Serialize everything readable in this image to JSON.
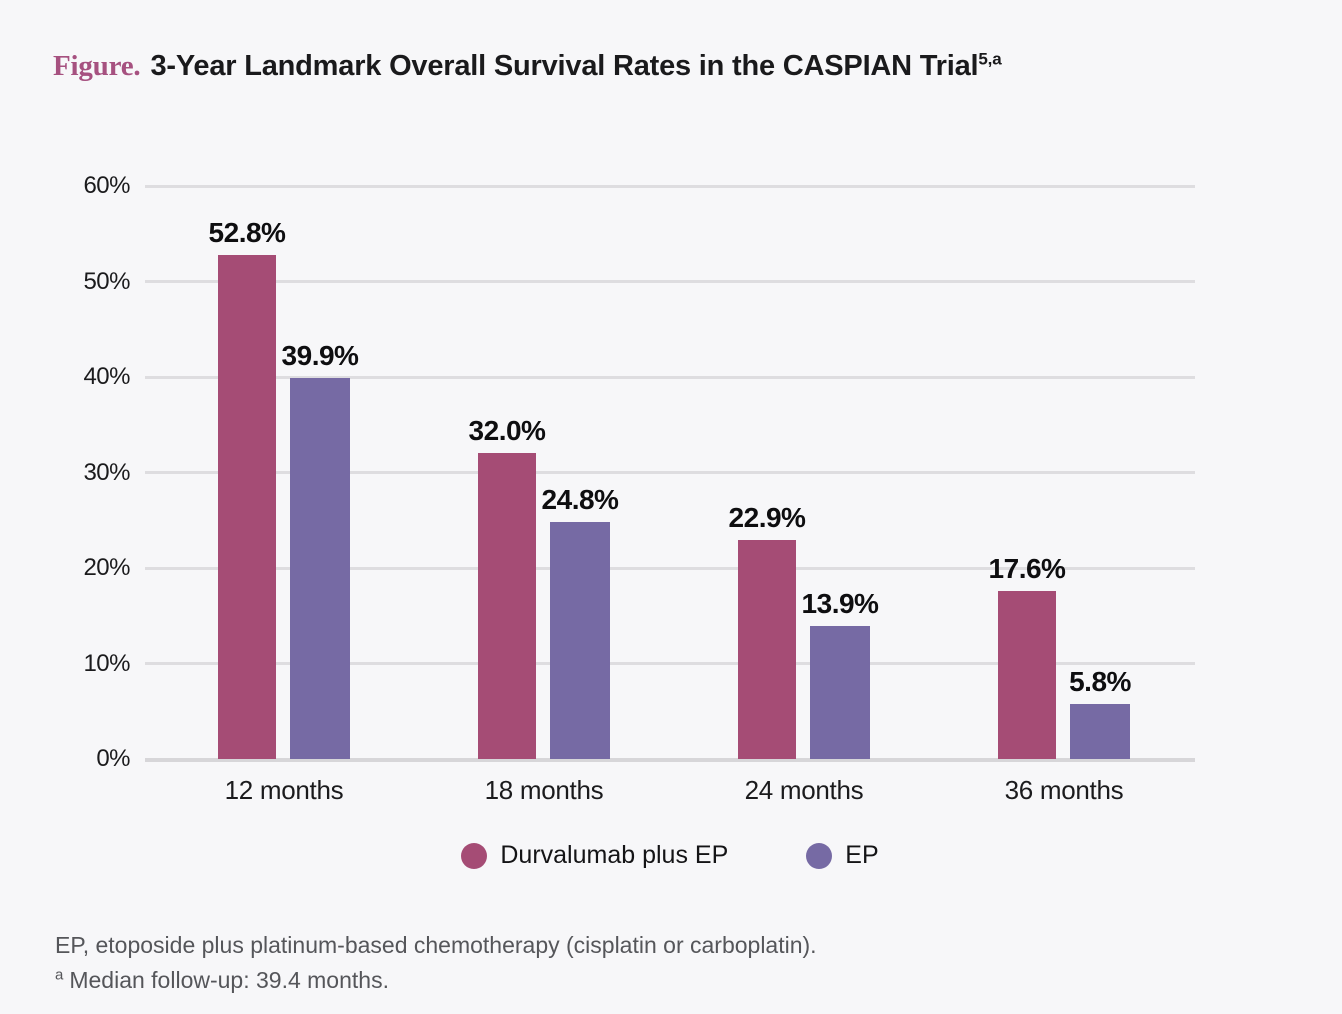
{
  "header": {
    "figure_label": "Figure.",
    "title": "3-Year Landmark Overall Survival Rates in the CASPIAN Trial",
    "superscript": "5,a"
  },
  "colors": {
    "background": "#f7f7f9",
    "title_accent": "#a65180",
    "gridline": "#dedde0",
    "axis_line": "#d7d6d9",
    "footnote_text": "#55565a",
    "durvalumab_plus_ep": "#a54c75",
    "ep": "#766aa4"
  },
  "chart_data": {
    "type": "bar",
    "title": "3-Year Landmark Overall Survival Rates in the CASPIAN Trial",
    "categories": [
      "12 months",
      "18 months",
      "24 months",
      "36 months"
    ],
    "series": [
      {
        "name": "Durvalumab plus EP",
        "color": "#a54c75",
        "values": [
          52.8,
          32.0,
          22.9,
          17.6
        ]
      },
      {
        "name": "EP",
        "color": "#766aa4",
        "values": [
          39.9,
          24.8,
          13.9,
          5.8
        ]
      }
    ],
    "value_suffix": "%",
    "xlabel": "",
    "ylabel": "",
    "ylim": [
      0,
      60
    ],
    "yticks": [
      0,
      10,
      20,
      30,
      40,
      50,
      60
    ],
    "ytick_suffix": "%",
    "grid": true,
    "legend_position": "bottom"
  },
  "footnotes": {
    "abbreviation": "EP, etoposide plus platinum-based chemotherapy (cisplatin or carboplatin).",
    "followup": {
      "marker": "a",
      "text": "Median follow-up: 39.4 months."
    }
  }
}
